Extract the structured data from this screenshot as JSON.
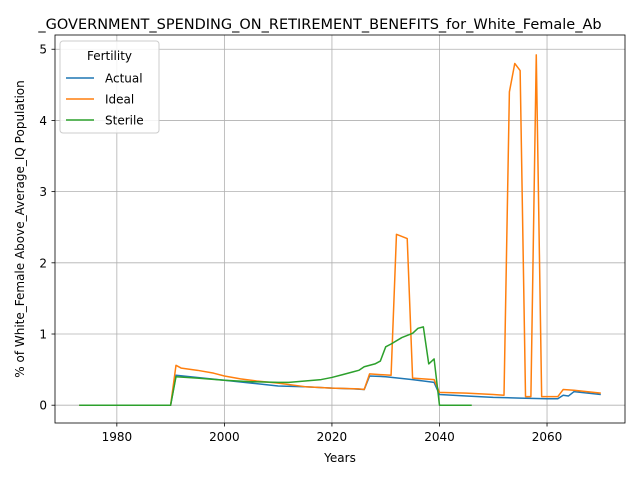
{
  "chart_data": {
    "type": "line",
    "title": "_GOVERNMENT_SPENDING_ON_RETIREMENT_BENEFITS_for_White_Female_Ab",
    "xlabel": "Years",
    "ylabel": "% of White_Female Above_Average_IQ Population",
    "xlim": [
      1968.5,
      2074.5
    ],
    "ylim": [
      -0.25,
      5.2
    ],
    "xticks": [
      1980,
      2000,
      2020,
      2040,
      2060
    ],
    "yticks": [
      0,
      1,
      2,
      3,
      4,
      5
    ],
    "grid": true,
    "legend": {
      "title": "Fertility",
      "placement": "upper-left"
    },
    "series": [
      {
        "name": "Actual",
        "color": "#1f77b4",
        "points": [
          [
            1973,
            0
          ],
          [
            1990,
            0
          ],
          [
            1991,
            0.42
          ],
          [
            1995,
            0.39
          ],
          [
            2000,
            0.35
          ],
          [
            2005,
            0.31
          ],
          [
            2010,
            0.27
          ],
          [
            2015,
            0.26
          ],
          [
            2020,
            0.24
          ],
          [
            2024,
            0.23
          ],
          [
            2026,
            0.22
          ],
          [
            2027,
            0.41
          ],
          [
            2030,
            0.4
          ],
          [
            2035,
            0.36
          ],
          [
            2039,
            0.32
          ],
          [
            2040,
            0.15
          ],
          [
            2045,
            0.13
          ],
          [
            2050,
            0.11
          ],
          [
            2055,
            0.1
          ],
          [
            2060,
            0.09
          ],
          [
            2062,
            0.09
          ],
          [
            2063,
            0.14
          ],
          [
            2064,
            0.13
          ],
          [
            2065,
            0.19
          ],
          [
            2070,
            0.15
          ]
        ]
      },
      {
        "name": "Ideal",
        "color": "#ff7f0e",
        "points": [
          [
            1973,
            0
          ],
          [
            1990,
            0
          ],
          [
            1991,
            0.56
          ],
          [
            1992,
            0.52
          ],
          [
            1995,
            0.49
          ],
          [
            1998,
            0.45
          ],
          [
            2000,
            0.41
          ],
          [
            2003,
            0.37
          ],
          [
            2006,
            0.34
          ],
          [
            2010,
            0.31
          ],
          [
            2015,
            0.26
          ],
          [
            2020,
            0.24
          ],
          [
            2025,
            0.23
          ],
          [
            2026,
            0.22
          ],
          [
            2027,
            0.44
          ],
          [
            2031,
            0.42
          ],
          [
            2032,
            2.4
          ],
          [
            2034,
            2.34
          ],
          [
            2035,
            0.38
          ],
          [
            2039,
            0.36
          ],
          [
            2040,
            0.18
          ],
          [
            2045,
            0.17
          ],
          [
            2050,
            0.15
          ],
          [
            2052,
            0.14
          ],
          [
            2053,
            4.4
          ],
          [
            2054,
            4.8
          ],
          [
            2055,
            4.7
          ],
          [
            2056,
            0.12
          ],
          [
            2057,
            0.12
          ],
          [
            2058,
            4.92
          ],
          [
            2059,
            0.12
          ],
          [
            2062,
            0.12
          ],
          [
            2063,
            0.22
          ],
          [
            2065,
            0.21
          ],
          [
            2070,
            0.17
          ]
        ]
      },
      {
        "name": "Sterile",
        "color": "#2ca02c",
        "points": [
          [
            1973,
            0
          ],
          [
            1990,
            0
          ],
          [
            1991,
            0.4
          ],
          [
            1995,
            0.38
          ],
          [
            2000,
            0.35
          ],
          [
            2005,
            0.33
          ],
          [
            2010,
            0.32
          ],
          [
            2012,
            0.32
          ],
          [
            2015,
            0.34
          ],
          [
            2018,
            0.36
          ],
          [
            2020,
            0.39
          ],
          [
            2022,
            0.43
          ],
          [
            2024,
            0.47
          ],
          [
            2025,
            0.49
          ],
          [
            2026,
            0.54
          ],
          [
            2028,
            0.58
          ],
          [
            2029,
            0.62
          ],
          [
            2030,
            0.82
          ],
          [
            2031,
            0.86
          ],
          [
            2033,
            0.95
          ],
          [
            2035,
            1.01
          ],
          [
            2036,
            1.08
          ],
          [
            2037,
            1.1
          ],
          [
            2038,
            0.58
          ],
          [
            2039,
            0.65
          ],
          [
            2040,
            0.0
          ],
          [
            2046,
            0.0
          ]
        ]
      }
    ]
  }
}
